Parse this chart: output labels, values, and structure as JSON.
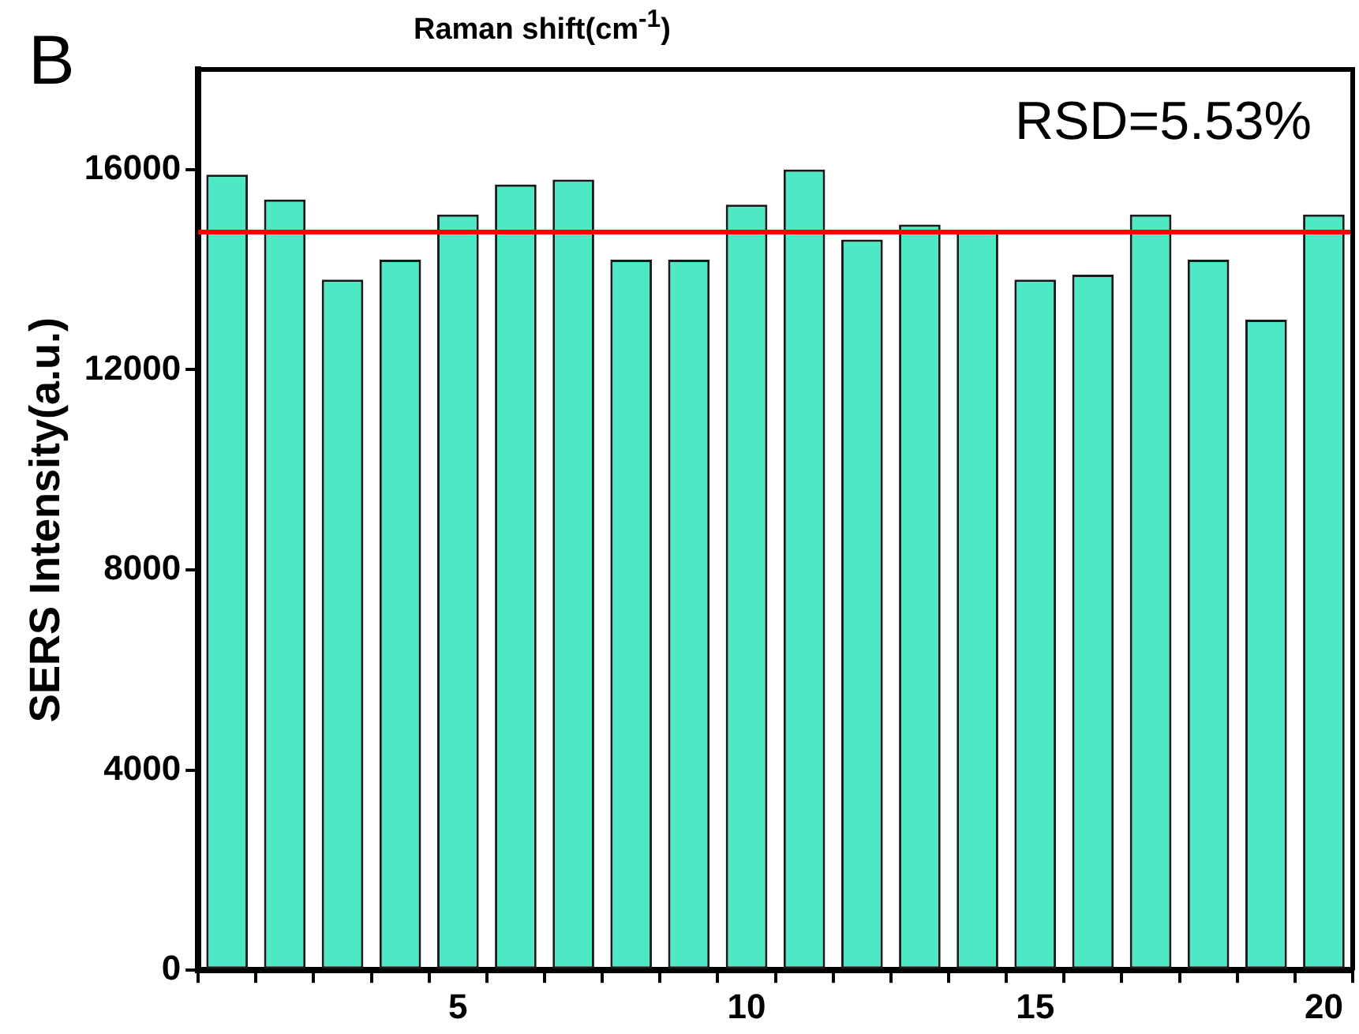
{
  "chart_data": {
    "type": "bar",
    "ylabel": "SERS Intensity(a.u.)",
    "annotations": [
      "Raman shift(cm$^{-1}$)",
      "B",
      "RSD=5.53%"
    ],
    "categories": [
      null,
      null,
      null,
      null,
      "5",
      null,
      null,
      null,
      null,
      "10",
      null,
      null,
      null,
      null,
      "15",
      null,
      null,
      null,
      null,
      "20"
    ],
    "values": [
      15900,
      15400,
      13800,
      14200,
      15100,
      15700,
      15800,
      14200,
      14200,
      15300,
      16000,
      14600,
      14900,
      14800,
      13800,
      13900,
      15100,
      14200,
      13000,
      15100
    ],
    "color": "#4de8c4",
    "ylim": [
      0,
      18000
    ],
    "yticks": [
      0,
      4000,
      8000,
      12000,
      16000
    ],
    "ref_lines": [
      {
        "axis": "y",
        "value": 14750,
        "color": "#ff0000"
      }
    ],
    "grid": false,
    "legend": false
  }
}
